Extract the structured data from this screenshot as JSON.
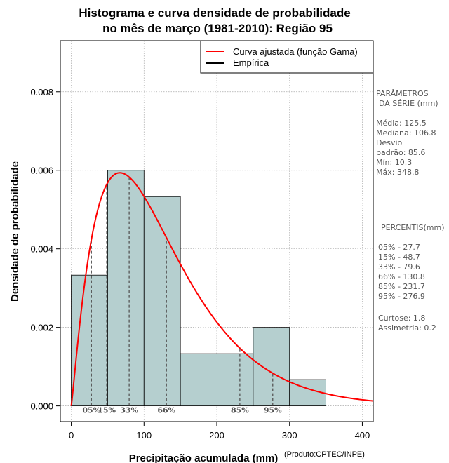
{
  "chart_data": {
    "type": "bar",
    "title": [
      "Histograma e curva densidade de probabilidade",
      "no mês de março (1981-2010): Região 95"
    ],
    "xlabel": "Precipitação acumulada (mm)",
    "ylabel": "Densidade de probabilidade",
    "xlim": [
      -15,
      415
    ],
    "ylim": [
      -0.0004,
      0.0093
    ],
    "x_ticks": [
      0,
      100,
      200,
      300,
      400
    ],
    "y_ticks": [
      0.0,
      0.002,
      0.004,
      0.006,
      0.008
    ],
    "x_tick_labels": [
      "0",
      "100",
      "200",
      "300",
      "400"
    ],
    "y_tick_labels": [
      "0.000",
      "0.002",
      "0.004",
      "0.006",
      "0.008"
    ],
    "grid": true,
    "bin_edges": [
      0,
      50,
      100,
      150,
      250,
      300,
      350
    ],
    "values": [
      0.00333,
      0.006,
      0.00533,
      0.00133,
      0.002,
      0.00067
    ],
    "curve": {
      "name": "Curva ajustada (função Gama)",
      "color": "#ff0000",
      "shape": 2.14,
      "scale": 58.6
    },
    "legend": [
      {
        "label": "Curva ajustada (função Gama)",
        "color": "#ff0000"
      },
      {
        "label": "Empírica",
        "color": "#000000"
      }
    ],
    "legend_position": "top-right",
    "percentiles": [
      {
        "label": "05%",
        "value": 27.7
      },
      {
        "label": "15%",
        "value": 48.7
      },
      {
        "label": "33%",
        "value": 79.6
      },
      {
        "label": "66%",
        "value": 130.8
      },
      {
        "label": "85%",
        "value": 231.7
      },
      {
        "label": "95%",
        "value": 276.9
      }
    ],
    "colors": {
      "bar_fill": "#b5cfcf",
      "bar_stroke": "#000000",
      "curve": "#ff0000",
      "grid": "#aaaaaa",
      "percentile_line": "#555555"
    }
  },
  "side_panel": {
    "params_title_1": "PARÂMETROS",
    "params_title_2": "DA SÉRIE (mm)",
    "media": "Média:  125.5",
    "mediana": "Mediana:  106.8",
    "desvio_1": "Desvio",
    "desvio_2": "padrão:  85.6",
    "min": "Mín:  10.3",
    "max": "Máx:  348.8",
    "percentis_title": "PERCENTIS(mm)",
    "p05": "05% -  27.7",
    "p15": "15% -  48.7",
    "p33": "33% -  79.6",
    "p66": "66% -  130.8",
    "p85": "85% -  231.7",
    "p95": "95% -  276.9",
    "curtose": "Curtose:  1.8",
    "assimetria": "Assimetria:  0.2"
  },
  "credit": "(Produto:CPTEC/INPE)"
}
